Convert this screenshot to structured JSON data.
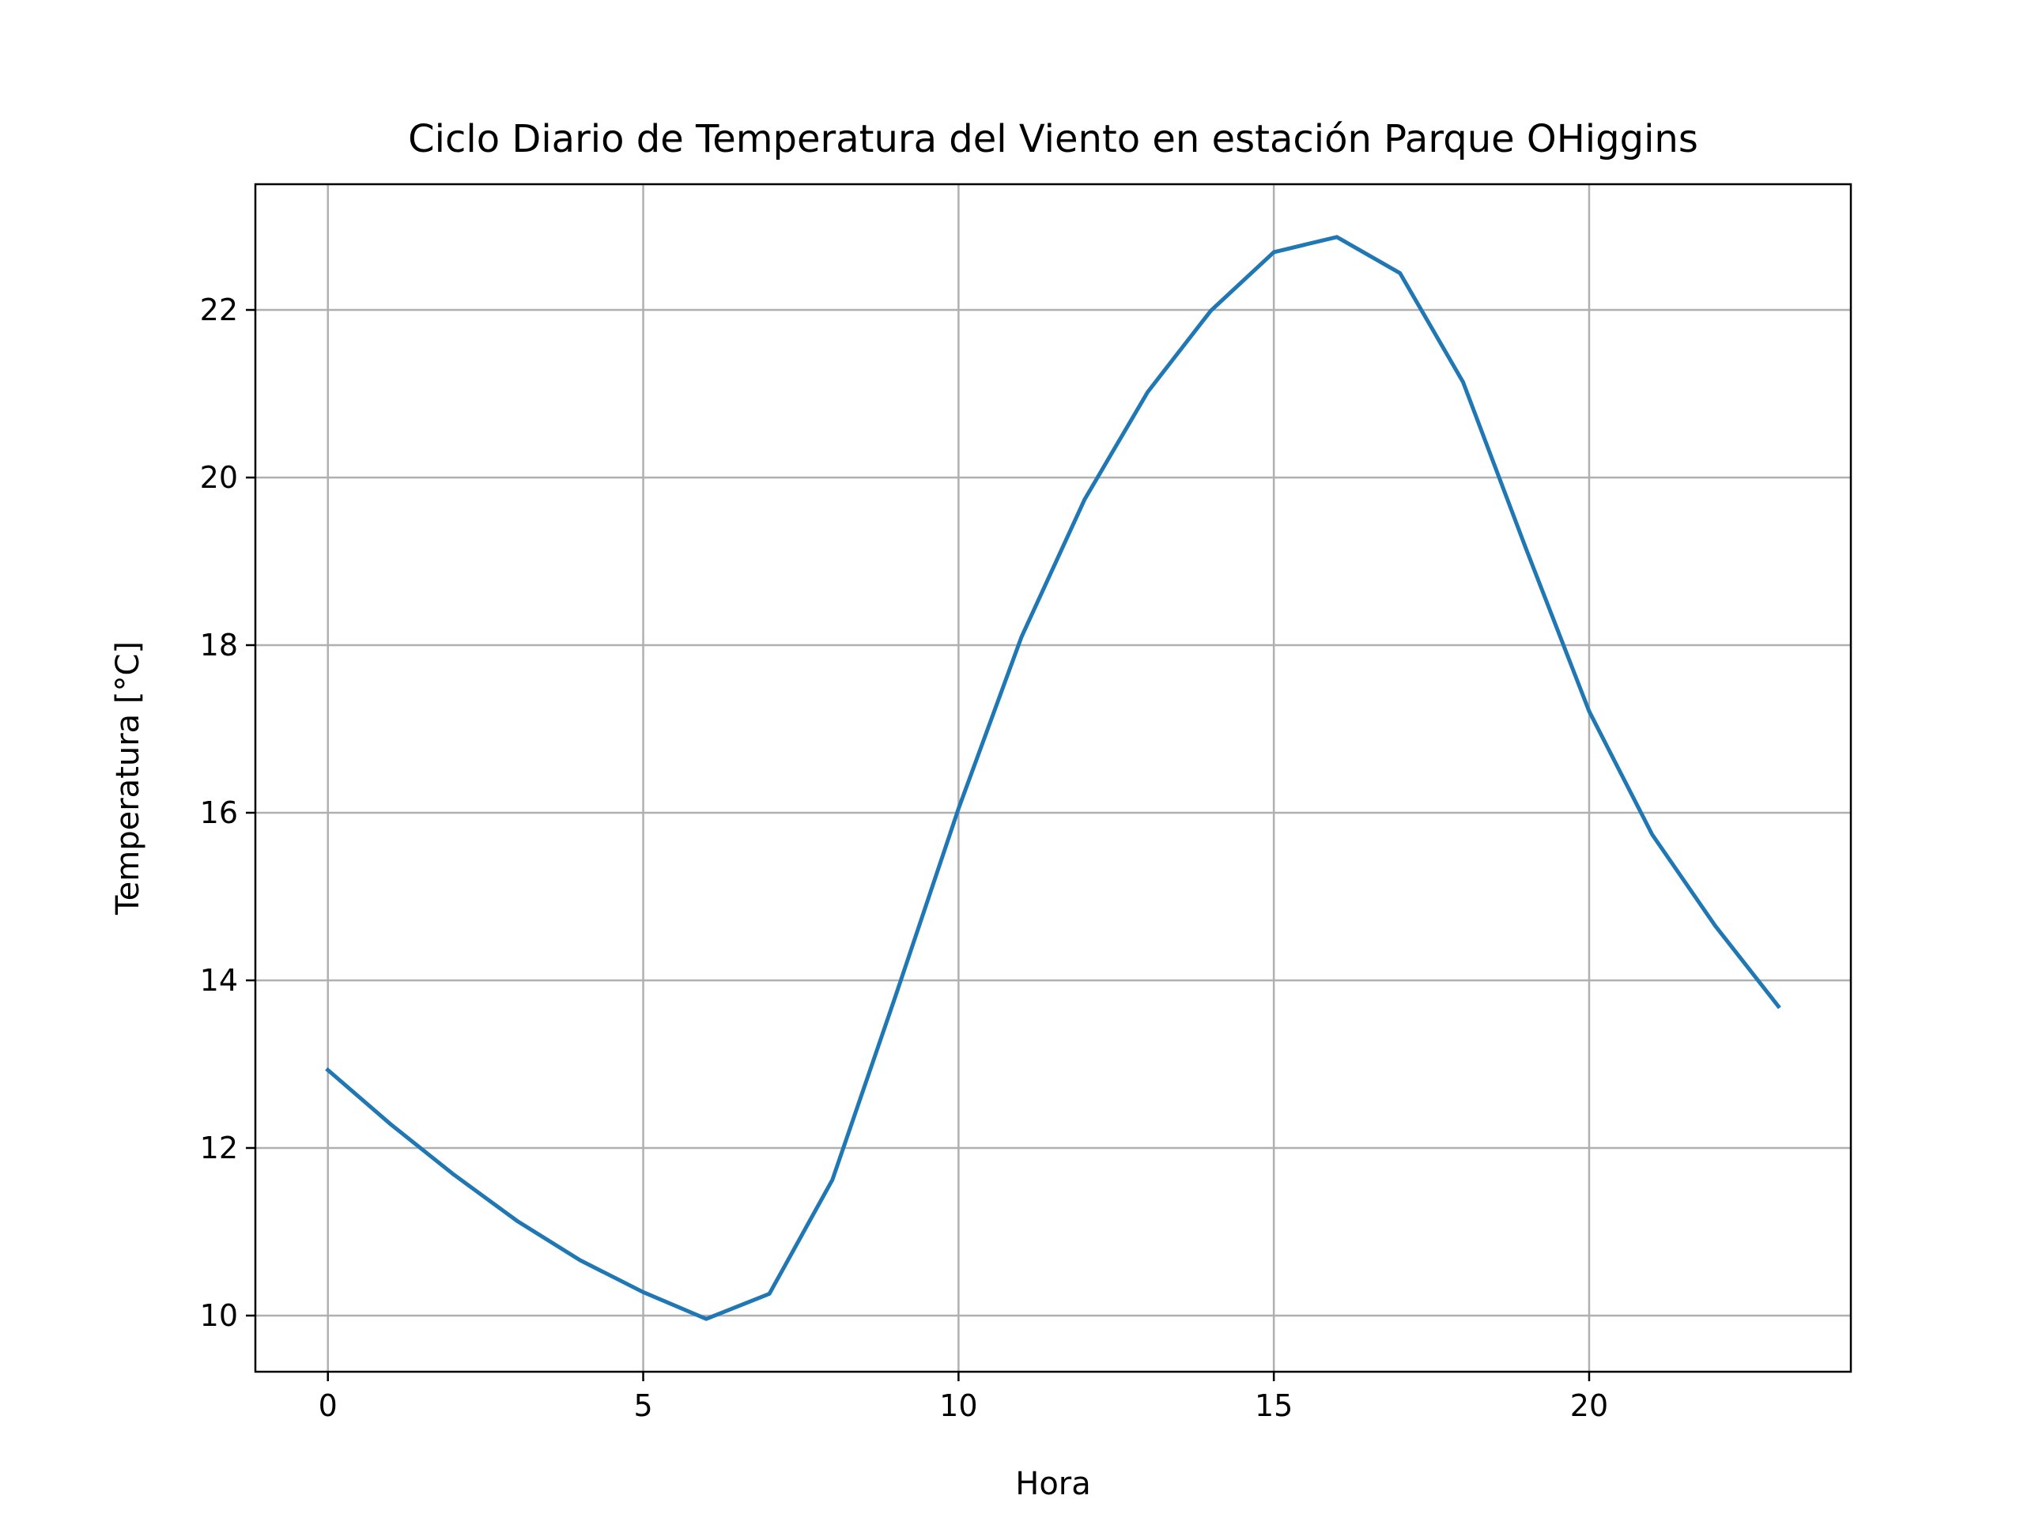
{
  "chart_data": {
    "type": "line",
    "title": "Ciclo Diario de Temperatura del Viento en estación Parque OHiggins",
    "xlabel": "Hora",
    "ylabel": "Temperatura [°C]",
    "xlim": [
      -1.15,
      24.15
    ],
    "ylim": [
      9.33,
      23.5
    ],
    "xticks": [
      0,
      5,
      10,
      15,
      20
    ],
    "yticks": [
      10,
      12,
      14,
      16,
      18,
      20,
      22
    ],
    "grid": true,
    "line_color": "#1f77b4",
    "series": [
      {
        "x": [
          0,
          1,
          2,
          3,
          4,
          5,
          6,
          7,
          8,
          9,
          10,
          11,
          12,
          13,
          14,
          15,
          16,
          17,
          18,
          19,
          20,
          21,
          22,
          23
        ],
        "values": [
          12.93,
          12.28,
          11.68,
          11.13,
          10.66,
          10.28,
          9.96,
          10.26,
          11.62,
          13.81,
          16.05,
          18.1,
          19.74,
          21.02,
          21.99,
          22.69,
          22.87,
          22.44,
          21.14,
          19.15,
          17.21,
          15.74,
          14.65,
          13.69
        ]
      }
    ]
  }
}
